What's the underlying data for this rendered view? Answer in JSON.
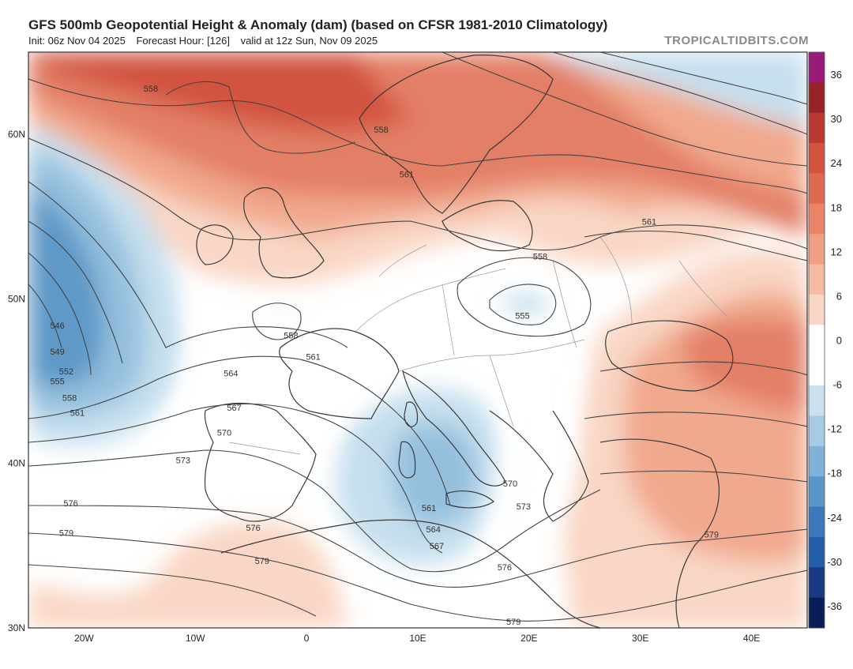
{
  "header": {
    "title": "GFS 500mb Geopotential Height & Anomaly (dam) (based on CFSR 1981-2010 Climatology)",
    "init": "Init: 06z Nov 04 2025",
    "forecast_hour": "Forecast Hour: [126]",
    "valid": "valid at 12z Sun, Nov 09 2025",
    "brand": "TROPICALTIDBITS.COM"
  },
  "map": {
    "lon_range": [
      -25,
      45
    ],
    "lat_range": [
      30,
      65
    ],
    "lat_ticks": [
      {
        "lat": 60,
        "label": "60N"
      },
      {
        "lat": 50,
        "label": "50N"
      },
      {
        "lat": 40,
        "label": "40N"
      },
      {
        "lat": 30,
        "label": "30N"
      }
    ],
    "lon_ticks": [
      {
        "lon": -20,
        "label": "20W"
      },
      {
        "lon": -10,
        "label": "10W"
      },
      {
        "lon": 0,
        "label": "0"
      },
      {
        "lon": 10,
        "label": "10E"
      },
      {
        "lon": 20,
        "label": "20E"
      },
      {
        "lon": 30,
        "label": "30E"
      },
      {
        "lon": 40,
        "label": "40E"
      }
    ],
    "contour_labels": [
      {
        "text": "558",
        "lon": -14,
        "lat": 62.6
      },
      {
        "text": "558",
        "lon": 6.7,
        "lat": 60.1
      },
      {
        "text": "561",
        "lon": 9,
        "lat": 57.4
      },
      {
        "text": "561",
        "lon": 30.8,
        "lat": 54.5
      },
      {
        "text": "558",
        "lon": 21,
        "lat": 52.4
      },
      {
        "text": "555",
        "lon": 19.4,
        "lat": 48.8
      },
      {
        "text": "558",
        "lon": -1.4,
        "lat": 47.6
      },
      {
        "text": "561",
        "lon": 0.6,
        "lat": 46.3
      },
      {
        "text": "564",
        "lon": -6.8,
        "lat": 45.3
      },
      {
        "text": "567",
        "lon": -6.5,
        "lat": 43.2
      },
      {
        "text": "570",
        "lon": -7.4,
        "lat": 41.7
      },
      {
        "text": "573",
        "lon": -11.1,
        "lat": 40.0
      },
      {
        "text": "576",
        "lon": -21.2,
        "lat": 37.4
      },
      {
        "text": "579",
        "lon": -21.6,
        "lat": 35.6
      },
      {
        "text": "576",
        "lon": -4.8,
        "lat": 35.9
      },
      {
        "text": "579",
        "lon": -4,
        "lat": 33.9
      },
      {
        "text": "546",
        "lon": -22.4,
        "lat": 48.2
      },
      {
        "text": "549",
        "lon": -22.4,
        "lat": 46.6
      },
      {
        "text": "552",
        "lon": -21.6,
        "lat": 45.4
      },
      {
        "text": "555",
        "lon": -22.4,
        "lat": 44.8
      },
      {
        "text": "558",
        "lon": -21.3,
        "lat": 43.8
      },
      {
        "text": "561",
        "lon": -20.6,
        "lat": 42.9
      },
      {
        "text": "561",
        "lon": 11,
        "lat": 37.1
      },
      {
        "text": "564",
        "lon": 11.4,
        "lat": 35.8
      },
      {
        "text": "567",
        "lon": 11.7,
        "lat": 34.8
      },
      {
        "text": "570",
        "lon": 18.3,
        "lat": 38.6
      },
      {
        "text": "573",
        "lon": 19.5,
        "lat": 37.2
      },
      {
        "text": "576",
        "lon": 17.8,
        "lat": 33.5
      },
      {
        "text": "579",
        "lon": 36.4,
        "lat": 35.5
      },
      {
        "text": "579",
        "lon": 18.6,
        "lat": 30.2
      }
    ]
  },
  "colorbar": {
    "ticks": [
      "36",
      "30",
      "24",
      "18",
      "12",
      "6",
      "0",
      "-6",
      "-12",
      "-18",
      "-24",
      "-30",
      "-36"
    ],
    "range": [
      -39,
      39
    ],
    "colors": [
      "#0b1d56",
      "#173a82",
      "#255ea8",
      "#3b79bb",
      "#5b96c9",
      "#80b1d8",
      "#a6cbe5",
      "#c9e0ef",
      "#ffffff",
      "#ffffff",
      "#f9d6c5",
      "#f5bca4",
      "#ef9f84",
      "#e98468",
      "#e06a4f",
      "#d2523e",
      "#bb3930",
      "#972228",
      "#9a1a7a"
    ],
    "fill_colors": {
      "warm_light": "#f9d6c5",
      "warm_mid": "#f1a98d",
      "warm_deep": "#e37f66",
      "warm_core": "#d1533f",
      "cool_light": "#c6dfee",
      "cool_mid": "#94c0de",
      "cool_deep": "#5f99c7"
    }
  }
}
